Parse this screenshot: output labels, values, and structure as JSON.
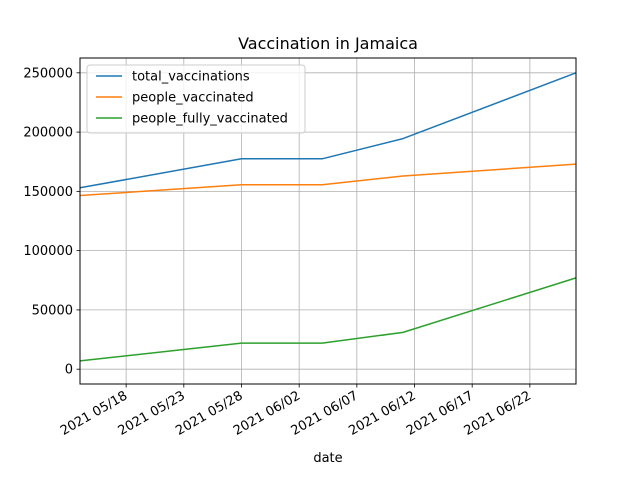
{
  "chart_data": {
    "type": "line",
    "title": "Vaccination in Jamaica",
    "xlabel": "date",
    "ylabel": "",
    "grid": true,
    "legend_position": "top-left",
    "xlim": [
      "2021-05-14",
      "2021-06-26"
    ],
    "ylim": [
      -12500,
      262500
    ],
    "x_ticks": [
      "2021 05/18",
      "2021 05/23",
      "2021 05/28",
      "2021 06/02",
      "2021 06/07",
      "2021 06/12",
      "2021 06/17",
      "2021 06/22"
    ],
    "x_tick_dates": [
      "2021-05-18",
      "2021-05-23",
      "2021-05-28",
      "2021-06-02",
      "2021-06-07",
      "2021-06-12",
      "2021-06-17",
      "2021-06-22"
    ],
    "y_ticks": [
      0,
      50000,
      100000,
      150000,
      200000,
      250000
    ],
    "y_tick_labels": [
      "0",
      "50000",
      "100000",
      "150000",
      "200000",
      "250000"
    ],
    "series": [
      {
        "name": "total_vaccinations",
        "color": "#1f77b4",
        "points": [
          {
            "x": "2021-05-14",
            "y": 153000
          },
          {
            "x": "2021-05-28",
            "y": 177500
          },
          {
            "x": "2021-06-04",
            "y": 177500
          },
          {
            "x": "2021-06-11",
            "y": 194500
          },
          {
            "x": "2021-06-26",
            "y": 250000
          }
        ]
      },
      {
        "name": "people_vaccinated",
        "color": "#ff7f0e",
        "points": [
          {
            "x": "2021-05-14",
            "y": 146500
          },
          {
            "x": "2021-05-28",
            "y": 155500
          },
          {
            "x": "2021-06-04",
            "y": 155500
          },
          {
            "x": "2021-06-11",
            "y": 163000
          },
          {
            "x": "2021-06-26",
            "y": 173000
          }
        ]
      },
      {
        "name": "people_fully_vaccinated",
        "color": "#2ca02c",
        "points": [
          {
            "x": "2021-05-14",
            "y": 7000
          },
          {
            "x": "2021-05-28",
            "y": 22000
          },
          {
            "x": "2021-06-04",
            "y": 22000
          },
          {
            "x": "2021-06-11",
            "y": 31000
          },
          {
            "x": "2021-06-26",
            "y": 77000
          }
        ]
      }
    ]
  }
}
